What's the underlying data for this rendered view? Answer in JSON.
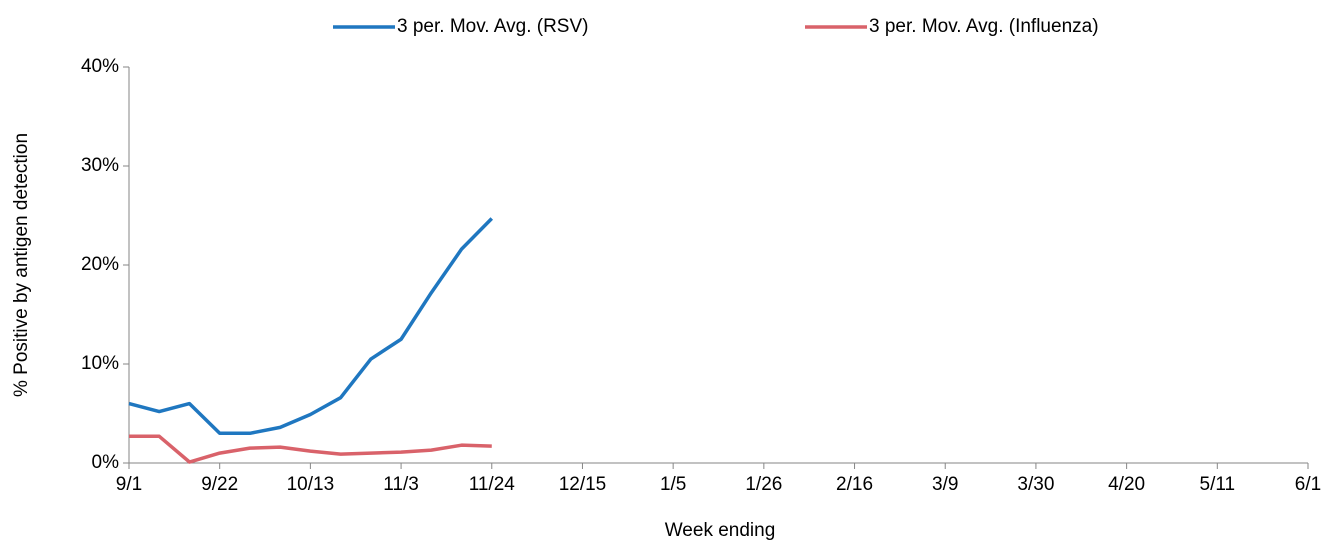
{
  "chart_data": {
    "type": "line",
    "x_label": "Week ending",
    "y_label": "% Positive by antigen detection",
    "categories": [
      "9/1",
      null,
      null,
      "9/22",
      null,
      null,
      "10/13",
      null,
      null,
      "11/3",
      null,
      null,
      "11/24",
      null,
      null,
      "12/15",
      null,
      null,
      "1/5",
      null,
      null,
      "1/26",
      null,
      null,
      "2/16",
      null,
      null,
      "3/9",
      null,
      null,
      "3/30",
      null,
      null,
      "4/20",
      null,
      null,
      "5/11",
      null,
      null,
      "6/1"
    ],
    "series": [
      {
        "name": "3 per. Mov. Avg. (RSV)",
        "color": "#1f77c0",
        "values": [
          6.0,
          5.2,
          6.0,
          3.0,
          3.0,
          3.6,
          4.9,
          6.6,
          10.5,
          12.5,
          17.2,
          21.6,
          24.7,
          null,
          null,
          null,
          null,
          null,
          null,
          null,
          null,
          null,
          null,
          null,
          null,
          null,
          null,
          null,
          null,
          null,
          null,
          null,
          null,
          null,
          null,
          null,
          null,
          null,
          null,
          null
        ]
      },
      {
        "name": "3 per. Mov. Avg. (Influenza)",
        "color": "#d9626a",
        "values": [
          2.7,
          2.7,
          0.1,
          1.0,
          1.5,
          1.6,
          1.2,
          0.9,
          1.0,
          1.1,
          1.3,
          1.8,
          1.7,
          null,
          null,
          null,
          null,
          null,
          null,
          null,
          null,
          null,
          null,
          null,
          null,
          null,
          null,
          null,
          null,
          null,
          null,
          null,
          null,
          null,
          null,
          null,
          null,
          null,
          null,
          null
        ]
      }
    ],
    "ylim": [
      0,
      40
    ],
    "yticks": [
      {
        "value": 0,
        "label": "0%"
      },
      {
        "value": 10,
        "label": "10%"
      },
      {
        "value": 20,
        "label": "20%"
      },
      {
        "value": 30,
        "label": "30%"
      },
      {
        "value": 40,
        "label": "40%"
      }
    ],
    "legend": "top"
  }
}
